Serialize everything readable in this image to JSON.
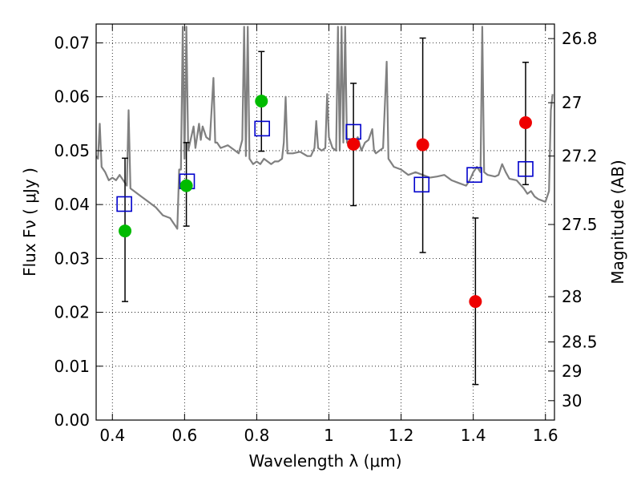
{
  "chart_data": {
    "type": "scatter",
    "xlabel": "Wavelength  λ (μm)",
    "ylabel": "Flux  Fν  ( μJy )",
    "ylabel_right": "Magnitude (AB)",
    "xlim": [
      0.355,
      1.625
    ],
    "ylim": [
      0.0,
      0.0735
    ],
    "grid": true,
    "x_ticks": [
      0.4,
      0.6,
      0.8,
      1.0,
      1.2,
      1.4,
      1.6
    ],
    "x_tick_labels": [
      "0.4",
      "0.6",
      "0.8",
      "1",
      "1.2",
      "1.4",
      "1.6"
    ],
    "y_ticks": [
      0.0,
      0.01,
      0.02,
      0.03,
      0.04,
      0.05,
      0.06,
      0.07
    ],
    "y_tick_labels": [
      "0.00",
      "0.01",
      "0.02",
      "0.03",
      "0.04",
      "0.05",
      "0.06",
      "0.07"
    ],
    "right_ticks": [
      {
        "label": "26.8",
        "flux": 0.0708
      },
      {
        "label": "27",
        "flux": 0.0589
      },
      {
        "label": "27.2",
        "flux": 0.049
      },
      {
        "label": "27.5",
        "flux": 0.0363
      },
      {
        "label": "28",
        "flux": 0.0229
      },
      {
        "label": "28.5",
        "flux": 0.0145
      },
      {
        "label": "29",
        "flux": 0.0091
      },
      {
        "label": "30",
        "flux": 0.0036
      }
    ],
    "colors": {
      "model": "#808080",
      "green": "#00bb00",
      "red": "#ee0000",
      "square": "#0000cc",
      "errorbar": "#000000"
    },
    "model_spectrum": [
      [
        0.355,
        0.049
      ],
      [
        0.36,
        0.0485
      ],
      [
        0.365,
        0.055
      ],
      [
        0.37,
        0.047
      ],
      [
        0.38,
        0.046
      ],
      [
        0.39,
        0.0445
      ],
      [
        0.4,
        0.045
      ],
      [
        0.41,
        0.0445
      ],
      [
        0.42,
        0.0455
      ],
      [
        0.43,
        0.0445
      ],
      [
        0.44,
        0.0435
      ],
      [
        0.445,
        0.0575
      ],
      [
        0.45,
        0.043
      ],
      [
        0.46,
        0.0425
      ],
      [
        0.48,
        0.0415
      ],
      [
        0.5,
        0.0405
      ],
      [
        0.52,
        0.0395
      ],
      [
        0.54,
        0.038
      ],
      [
        0.56,
        0.0375
      ],
      [
        0.57,
        0.0365
      ],
      [
        0.575,
        0.036
      ],
      [
        0.58,
        0.0355
      ],
      [
        0.585,
        0.0465
      ],
      [
        0.59,
        0.0465
      ],
      [
        0.595,
        0.073
      ],
      [
        0.6,
        0.0485
      ],
      [
        0.605,
        0.073
      ],
      [
        0.61,
        0.05
      ],
      [
        0.62,
        0.053
      ],
      [
        0.625,
        0.0545
      ],
      [
        0.63,
        0.0505
      ],
      [
        0.64,
        0.055
      ],
      [
        0.645,
        0.052
      ],
      [
        0.65,
        0.0545
      ],
      [
        0.66,
        0.0525
      ],
      [
        0.67,
        0.052
      ],
      [
        0.68,
        0.0635
      ],
      [
        0.685,
        0.0515
      ],
      [
        0.69,
        0.0515
      ],
      [
        0.7,
        0.0505
      ],
      [
        0.72,
        0.051
      ],
      [
        0.74,
        0.05
      ],
      [
        0.75,
        0.0495
      ],
      [
        0.76,
        0.052
      ],
      [
        0.765,
        0.073
      ],
      [
        0.77,
        0.049
      ],
      [
        0.775,
        0.073
      ],
      [
        0.78,
        0.0485
      ],
      [
        0.79,
        0.0475
      ],
      [
        0.8,
        0.048
      ],
      [
        0.81,
        0.0475
      ],
      [
        0.82,
        0.0485
      ],
      [
        0.83,
        0.048
      ],
      [
        0.84,
        0.0475
      ],
      [
        0.85,
        0.048
      ],
      [
        0.86,
        0.048
      ],
      [
        0.87,
        0.0485
      ],
      [
        0.875,
        0.0515
      ],
      [
        0.88,
        0.06
      ],
      [
        0.885,
        0.0495
      ],
      [
        0.89,
        0.0495
      ],
      [
        0.9,
        0.0495
      ],
      [
        0.92,
        0.0498
      ],
      [
        0.94,
        0.049
      ],
      [
        0.95,
        0.049
      ],
      [
        0.96,
        0.0505
      ],
      [
        0.965,
        0.0555
      ],
      [
        0.97,
        0.0505
      ],
      [
        0.98,
        0.05
      ],
      [
        0.99,
        0.0505
      ],
      [
        0.995,
        0.0605
      ],
      [
        1.0,
        0.0525
      ],
      [
        1.01,
        0.0505
      ],
      [
        1.02,
        0.05
      ],
      [
        1.025,
        0.073
      ],
      [
        1.03,
        0.05
      ],
      [
        1.035,
        0.073
      ],
      [
        1.04,
        0.0515
      ],
      [
        1.045,
        0.073
      ],
      [
        1.05,
        0.0515
      ],
      [
        1.06,
        0.051
      ],
      [
        1.07,
        0.0515
      ],
      [
        1.08,
        0.0525
      ],
      [
        1.09,
        0.05
      ],
      [
        1.1,
        0.0515
      ],
      [
        1.11,
        0.052
      ],
      [
        1.12,
        0.054
      ],
      [
        1.125,
        0.05
      ],
      [
        1.13,
        0.0495
      ],
      [
        1.14,
        0.05
      ],
      [
        1.15,
        0.0505
      ],
      [
        1.16,
        0.0665
      ],
      [
        1.165,
        0.0485
      ],
      [
        1.18,
        0.047
      ],
      [
        1.2,
        0.0465
      ],
      [
        1.22,
        0.0455
      ],
      [
        1.24,
        0.046
      ],
      [
        1.26,
        0.0455
      ],
      [
        1.28,
        0.045
      ],
      [
        1.3,
        0.0452
      ],
      [
        1.32,
        0.0455
      ],
      [
        1.34,
        0.0445
      ],
      [
        1.36,
        0.044
      ],
      [
        1.38,
        0.0435
      ],
      [
        1.39,
        0.0445
      ],
      [
        1.4,
        0.046
      ],
      [
        1.41,
        0.047
      ],
      [
        1.42,
        0.046
      ],
      [
        1.425,
        0.073
      ],
      [
        1.43,
        0.046
      ],
      [
        1.44,
        0.0455
      ],
      [
        1.46,
        0.0452
      ],
      [
        1.47,
        0.0455
      ],
      [
        1.48,
        0.0475
      ],
      [
        1.49,
        0.046
      ],
      [
        1.5,
        0.0448
      ],
      [
        1.52,
        0.0445
      ],
      [
        1.54,
        0.043
      ],
      [
        1.55,
        0.042
      ],
      [
        1.56,
        0.0425
      ],
      [
        1.57,
        0.0415
      ],
      [
        1.58,
        0.041
      ],
      [
        1.6,
        0.0405
      ],
      [
        1.61,
        0.0425
      ],
      [
        1.615,
        0.0575
      ],
      [
        1.62,
        0.0605
      ]
    ],
    "green_points": [
      {
        "x": 0.435,
        "y": 0.0351
      },
      {
        "x": 0.605,
        "y": 0.0435
      },
      {
        "x": 0.813,
        "y": 0.0592
      }
    ],
    "red_points": [
      {
        "x": 1.068,
        "y": 0.0512
      },
      {
        "x": 1.26,
        "y": 0.0511
      },
      {
        "x": 1.406,
        "y": 0.022
      },
      {
        "x": 1.545,
        "y": 0.0552
      }
    ],
    "squares": [
      {
        "x": 0.433,
        "y": 0.0401
      },
      {
        "x": 0.607,
        "y": 0.0443
      },
      {
        "x": 0.815,
        "y": 0.0541
      },
      {
        "x": 1.068,
        "y": 0.0535
      },
      {
        "x": 1.257,
        "y": 0.0437
      },
      {
        "x": 1.403,
        "y": 0.0455
      },
      {
        "x": 1.545,
        "y": 0.0466
      }
    ],
    "error_bars": [
      {
        "x": 0.435,
        "low": 0.022,
        "high": 0.0486
      },
      {
        "x": 0.605,
        "low": 0.036,
        "high": 0.0515
      },
      {
        "x": 0.813,
        "low": 0.0499,
        "high": 0.0684
      },
      {
        "x": 1.068,
        "low": 0.0398,
        "high": 0.0625
      },
      {
        "x": 1.26,
        "low": 0.0311,
        "high": 0.0709
      },
      {
        "x": 1.406,
        "low": 0.0066,
        "high": 0.0375
      },
      {
        "x": 1.545,
        "low": 0.0437,
        "high": 0.0664
      }
    ]
  }
}
